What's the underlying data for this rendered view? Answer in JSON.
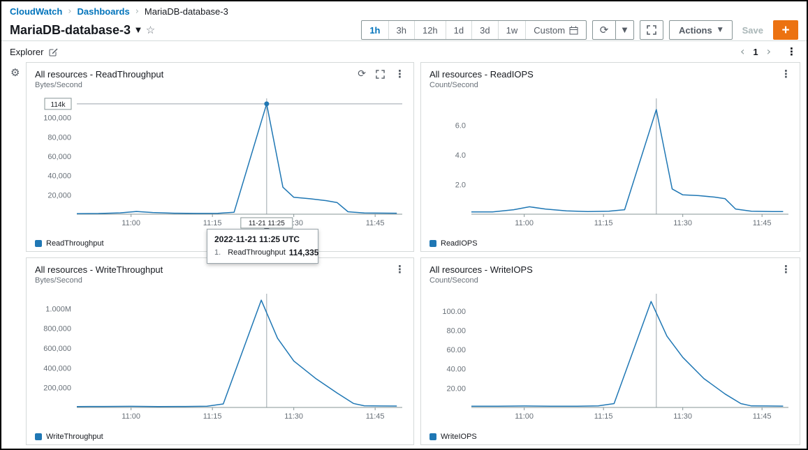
{
  "colors": {
    "link": "#0073bb",
    "line": "#1f77b4",
    "orange": "#ec7211"
  },
  "breadcrumb": {
    "items": [
      "CloudWatch",
      "Dashboards",
      "MariaDB-database-3"
    ]
  },
  "header": {
    "title": "MariaDB-database-3"
  },
  "toolbar": {
    "ranges": [
      "1h",
      "3h",
      "12h",
      "1d",
      "3d",
      "1w"
    ],
    "selected_range": "1h",
    "custom_label": "Custom",
    "actions_label": "Actions",
    "save_label": "Save",
    "add_label": "+"
  },
  "explorer": {
    "label": "Explorer",
    "page": "1"
  },
  "tooltip": {
    "title": "2022-11-21 11:25 UTC",
    "row_index": "1.",
    "row_label": "ReadThroughput",
    "row_value": "114,335"
  },
  "chart_data": [
    {
      "type": "line",
      "title": "All resources - ReadThroughput",
      "legend": "ReadThroughput",
      "ylabel": "Bytes/Second",
      "xrange": [
        0,
        60
      ],
      "ymax": 120000,
      "xticks": [
        {
          "t": 10,
          "label": "11:00"
        },
        {
          "t": 25,
          "label": "11:15"
        },
        {
          "t": 40,
          "label": "11:30"
        },
        {
          "t": 55,
          "label": "11:45"
        }
      ],
      "yticks": [
        {
          "v": 20000,
          "label": "20,000"
        },
        {
          "v": 40000,
          "label": "40,000"
        },
        {
          "v": 60000,
          "label": "60,000"
        },
        {
          "v": 80000,
          "label": "80,000"
        },
        {
          "v": 100000,
          "label": "100,000"
        }
      ],
      "points": [
        [
          0,
          600
        ],
        [
          4,
          700
        ],
        [
          8,
          1400
        ],
        [
          11,
          2800
        ],
        [
          14,
          1700
        ],
        [
          18,
          1000
        ],
        [
          22,
          800
        ],
        [
          26,
          900
        ],
        [
          29,
          2000
        ],
        [
          35,
          114335
        ],
        [
          38,
          28000
        ],
        [
          40,
          17500
        ],
        [
          43,
          16000
        ],
        [
          46,
          14000
        ],
        [
          48,
          12000
        ],
        [
          50,
          2500
        ],
        [
          53,
          1200
        ],
        [
          57,
          1100
        ],
        [
          59,
          1000
        ]
      ],
      "cursor": {
        "t": 35,
        "v": 114335,
        "v_label": "114k",
        "t_label": "11-21 11:25"
      }
    },
    {
      "type": "line",
      "title": "All resources - ReadIOPS",
      "legend": "ReadIOPS",
      "ylabel": "Count/Second",
      "xrange": [
        0,
        60
      ],
      "ymax": 7.8,
      "xticks": [
        {
          "t": 10,
          "label": "11:00"
        },
        {
          "t": 25,
          "label": "11:15"
        },
        {
          "t": 40,
          "label": "11:30"
        },
        {
          "t": 55,
          "label": "11:45"
        }
      ],
      "yticks": [
        {
          "v": 2,
          "label": "2.0"
        },
        {
          "v": 4,
          "label": "4.0"
        },
        {
          "v": 6,
          "label": "6.0"
        }
      ],
      "points": [
        [
          0,
          0.15
        ],
        [
          4,
          0.15
        ],
        [
          8,
          0.3
        ],
        [
          11,
          0.5
        ],
        [
          14,
          0.35
        ],
        [
          18,
          0.22
        ],
        [
          22,
          0.18
        ],
        [
          26,
          0.2
        ],
        [
          29,
          0.3
        ],
        [
          35,
          7.05
        ],
        [
          38,
          1.7
        ],
        [
          40,
          1.3
        ],
        [
          43,
          1.25
        ],
        [
          46,
          1.15
        ],
        [
          48,
          1.05
        ],
        [
          50,
          0.35
        ],
        [
          53,
          0.2
        ],
        [
          57,
          0.18
        ],
        [
          59,
          0.18
        ]
      ],
      "cursor": {
        "t": 35
      }
    },
    {
      "type": "line",
      "title": "All resources - WriteThroughput",
      "legend": "WriteThroughput",
      "ylabel": "Bytes/Second",
      "xrange": [
        0,
        60
      ],
      "ymax": 1150000,
      "xticks": [
        {
          "t": 10,
          "label": "11:00"
        },
        {
          "t": 25,
          "label": "11:15"
        },
        {
          "t": 40,
          "label": "11:30"
        },
        {
          "t": 55,
          "label": "11:45"
        }
      ],
      "yticks": [
        {
          "v": 200000,
          "label": "200,000"
        },
        {
          "v": 400000,
          "label": "400,000"
        },
        {
          "v": 600000,
          "label": "600,000"
        },
        {
          "v": 800000,
          "label": "800,000"
        },
        {
          "v": 1000000,
          "label": "1.000M"
        }
      ],
      "points": [
        [
          0,
          9000
        ],
        [
          5,
          10000
        ],
        [
          10,
          11000
        ],
        [
          15,
          9500
        ],
        [
          20,
          10000
        ],
        [
          24,
          12000
        ],
        [
          27,
          35000
        ],
        [
          34,
          1085000
        ],
        [
          37,
          700000
        ],
        [
          40,
          470000
        ],
        [
          44,
          295000
        ],
        [
          48,
          145000
        ],
        [
          51,
          40000
        ],
        [
          53,
          17000
        ],
        [
          56,
          15000
        ],
        [
          59,
          14000
        ]
      ],
      "cursor": {
        "t": 35
      }
    },
    {
      "type": "line",
      "title": "All resources - WriteIOPS",
      "legend": "WriteIOPS",
      "ylabel": "Count/Second",
      "xrange": [
        0,
        60
      ],
      "ymax": 118,
      "xticks": [
        {
          "t": 10,
          "label": "11:00"
        },
        {
          "t": 25,
          "label": "11:15"
        },
        {
          "t": 40,
          "label": "11:30"
        },
        {
          "t": 55,
          "label": "11:45"
        }
      ],
      "yticks": [
        {
          "v": 20,
          "label": "20.00"
        },
        {
          "v": 40,
          "label": "40.00"
        },
        {
          "v": 60,
          "label": "60.00"
        },
        {
          "v": 80,
          "label": "80.00"
        },
        {
          "v": 100,
          "label": "100.00"
        }
      ],
      "points": [
        [
          0,
          1.2
        ],
        [
          5,
          1.3
        ],
        [
          10,
          1.5
        ],
        [
          15,
          1.2
        ],
        [
          20,
          1.3
        ],
        [
          24,
          1.7
        ],
        [
          27,
          4
        ],
        [
          34,
          110
        ],
        [
          37,
          74
        ],
        [
          40,
          52
        ],
        [
          44,
          30
        ],
        [
          48,
          14
        ],
        [
          51,
          4
        ],
        [
          53,
          1.6
        ],
        [
          56,
          1.5
        ],
        [
          59,
          1.4
        ]
      ],
      "cursor": {
        "t": 35
      }
    }
  ]
}
